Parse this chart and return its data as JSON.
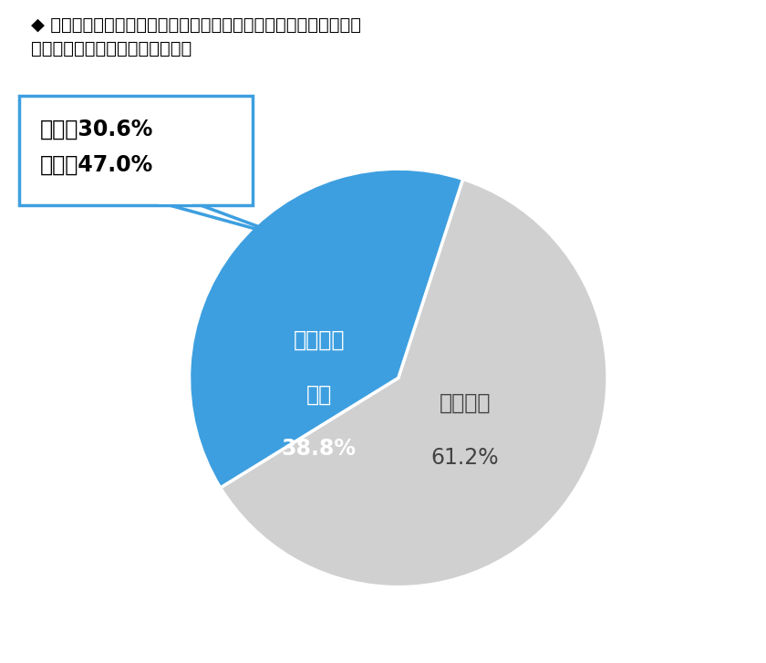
{
  "title_line1": "◆ あなたがラグビーに関心を持ったのは、大会が始まる前ですか、",
  "title_line2": "　それとも始まってからですか。",
  "slices": [
    61.2,
    38.8
  ],
  "colors": [
    "#d0d0d0",
    "#3d9fe0"
  ],
  "startangle": 72,
  "gray_label_line1": "始まる前",
  "gray_label_line2": "61.2%",
  "blue_label_line1": "始まって",
  "blue_label_line2": "から",
  "blue_label_line3": "38.8%",
  "callout_line1": "男性　3 0 . 6 %",
  "callout_line2": "女性　4 7 . 0 %",
  "callout_line1_display": "男性　30.6%",
  "callout_line2_display": "女性　47.0%",
  "callout_box_color": "#ffffff",
  "callout_border_color": "#3d9fe0",
  "background_color": "#ffffff",
  "title_fontsize": 14,
  "inside_label_fontsize": 17,
  "callout_fontsize": 17
}
